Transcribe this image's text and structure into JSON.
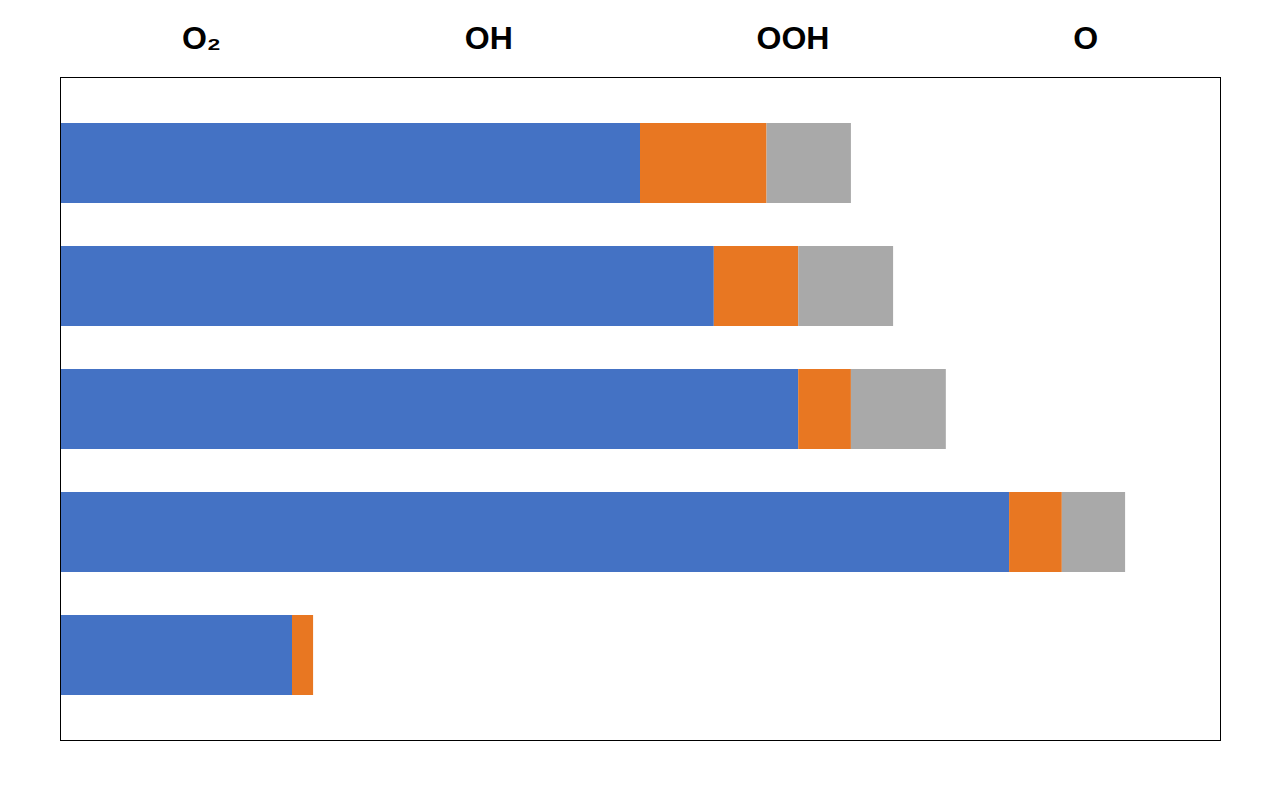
{
  "chart_data": {
    "type": "bar",
    "orientation": "horizontal",
    "stacked": true,
    "categories": [
      null,
      null,
      null,
      null,
      null
    ],
    "series": [
      {
        "color": "#4472C4",
        "values": [
          55,
          62,
          70,
          90,
          22
        ]
      },
      {
        "color": "#E87722",
        "values": [
          12,
          8,
          5,
          5,
          2
        ]
      },
      {
        "color": "#A9A9A9",
        "values": [
          8,
          9,
          9,
          6,
          0
        ]
      }
    ],
    "xlim": [
      0,
      110
    ],
    "tick_labels": false,
    "annotations": [
      "O₂",
      "OH",
      "OOH",
      "O"
    ]
  }
}
